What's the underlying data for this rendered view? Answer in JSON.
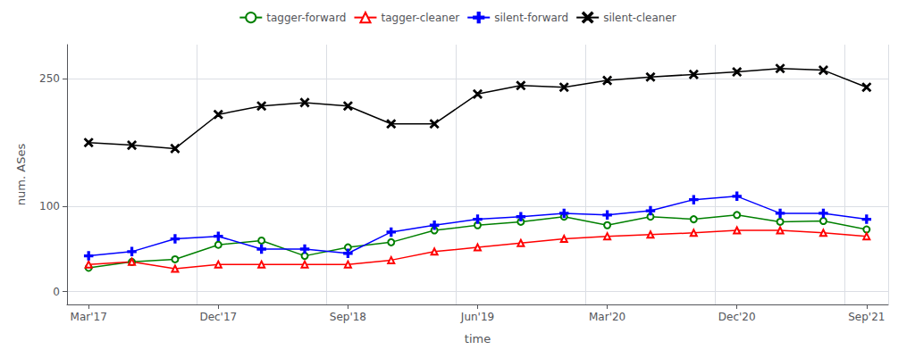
{
  "chart_data": {
    "type": "line",
    "title": "",
    "xlabel": "time",
    "ylabel": "num. ASes",
    "categories": [
      "Mar'17",
      null,
      null,
      "Dec'17",
      null,
      null,
      "Sep'18",
      null,
      null,
      "Jun'19",
      null,
      null,
      "Mar'20",
      null,
      null,
      "Dec'20",
      null,
      null,
      "Sep'21"
    ],
    "series": [
      {
        "name": "tagger-forward",
        "color": "green",
        "marker": "circle",
        "values": [
          28,
          35,
          38,
          55,
          60,
          42,
          52,
          58,
          72,
          78,
          82,
          88,
          78,
          88,
          85,
          90,
          82,
          83,
          73
        ]
      },
      {
        "name": "tagger-cleaner",
        "color": "red",
        "marker": "triangle",
        "values": [
          32,
          35,
          27,
          32,
          32,
          32,
          32,
          37,
          47,
          52,
          57,
          62,
          65,
          67,
          69,
          72,
          72,
          69,
          65
        ]
      },
      {
        "name": "silent-forward",
        "color": "blue",
        "marker": "plus",
        "values": [
          42,
          47,
          62,
          65,
          50,
          50,
          45,
          70,
          78,
          85,
          88,
          92,
          90,
          95,
          108,
          112,
          92,
          92,
          85
        ]
      },
      {
        "name": "silent-cleaner",
        "color": "black",
        "marker": "x",
        "values": [
          175,
          172,
          168,
          208,
          218,
          222,
          218,
          197,
          197,
          232,
          242,
          240,
          248,
          252,
          255,
          258,
          262,
          260,
          240
        ]
      }
    ],
    "ylim": [
      -15,
      290
    ],
    "yticks": [
      0,
      100,
      250
    ],
    "grid": true,
    "legend": "top"
  }
}
